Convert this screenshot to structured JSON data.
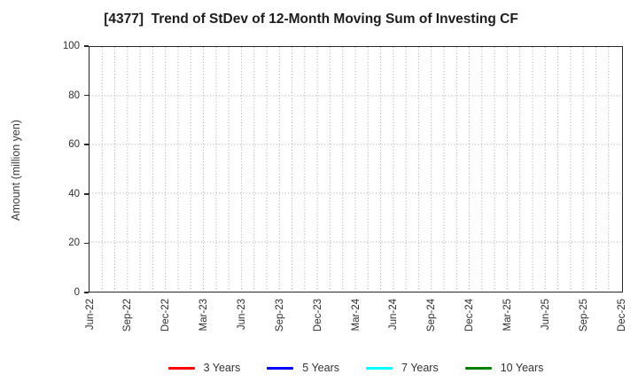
{
  "title": "[4377]  Trend of StDev of 12-Month Moving Sum of Investing CF",
  "y_axis": {
    "label": "Amount (million yen)",
    "ticks": [
      0,
      20,
      40,
      60,
      80,
      100
    ],
    "min": 0,
    "max": 100
  },
  "x_axis": {
    "tick_labels": [
      "Jun-22",
      "Sep-22",
      "Dec-22",
      "Mar-23",
      "Jun-23",
      "Sep-23",
      "Dec-23",
      "Mar-24",
      "Jun-24",
      "Sep-24",
      "Dec-24",
      "Mar-25",
      "Jun-25",
      "Sep-25",
      "Dec-25"
    ],
    "months_span": 42,
    "label_every_months": 3
  },
  "legend": {
    "items": [
      {
        "label": "3 Years",
        "color": "#ff0000"
      },
      {
        "label": "5 Years",
        "color": "#0000ff"
      },
      {
        "label": "7 Years",
        "color": "#00ffff"
      },
      {
        "label": "10 Years",
        "color": "#008000"
      }
    ]
  },
  "colors": {
    "background": "#ffffff",
    "axis": "#262626",
    "grid": "#a6a6a6",
    "title_text": "#1c1c1c",
    "tick_text": "#2e2e2e"
  },
  "chart_data": {
    "type": "line",
    "title": "[4377]  Trend of StDev of 12-Month Moving Sum of Investing CF",
    "xlabel": "",
    "ylabel": "Amount (million yen)",
    "ylim": [
      0,
      100
    ],
    "yticks": [
      0,
      20,
      40,
      60,
      80,
      100
    ],
    "x_tick_labels": [
      "Jun-22",
      "Sep-22",
      "Dec-22",
      "Mar-23",
      "Jun-23",
      "Sep-23",
      "Dec-23",
      "Mar-24",
      "Jun-24",
      "Sep-24",
      "Dec-24",
      "Mar-25",
      "Jun-25",
      "Sep-25",
      "Dec-25"
    ],
    "grid": "dotted gray; vertical gridline every month, horizontal gridline every 20 units",
    "legend_position": "bottom center",
    "series": [
      {
        "name": "3 Years",
        "color": "#ff0000",
        "values": []
      },
      {
        "name": "5 Years",
        "color": "#0000ff",
        "values": []
      },
      {
        "name": "7 Years",
        "color": "#00ffff",
        "values": []
      },
      {
        "name": "10 Years",
        "color": "#008000",
        "values": []
      }
    ],
    "note": "Plot area is empty: no data lines are drawn for any series; only the dotted grid is visible."
  }
}
